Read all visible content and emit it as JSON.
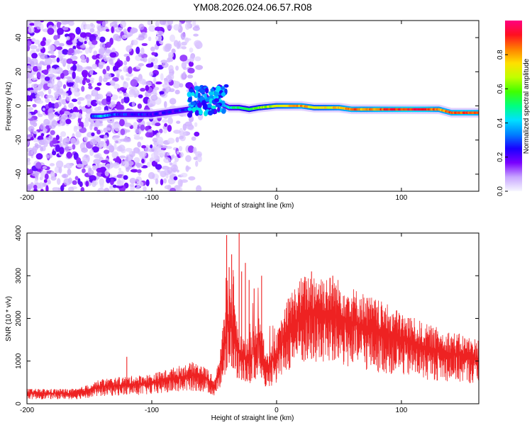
{
  "title": "YM08.2026.024.06.57.R08",
  "chart_data": [
    {
      "type": "heatmap",
      "title": "YM08.2026.024.06.57.R08",
      "xlabel": "Height of straight line (km)",
      "ylabel": "Frequency (Hz)",
      "xlim": [
        -200,
        162
      ],
      "ylim": [
        -50,
        50
      ],
      "x_ticks": [
        "-200",
        "-100",
        "0",
        "100"
      ],
      "y_ticks": [
        "-40",
        "-20",
        "0",
        "20",
        "40"
      ],
      "colorbar": {
        "label": "Normalized spectral amplitude",
        "range": [
          0,
          1
        ],
        "ticks": [
          "0.0",
          "0.2",
          "0.4",
          "0.6",
          "0.8"
        ],
        "colors": [
          "#f7f7ff",
          "#c8a6ff",
          "#7a00ff",
          "#1a00ff",
          "#0080ff",
          "#00e0ff",
          "#00ff80",
          "#40ff00",
          "#c0ff00",
          "#ffe000",
          "#ff8000",
          "#ff1020",
          "#ff0080"
        ]
      },
      "ridge": [
        {
          "x": -148,
          "f": -6,
          "a": 0.3
        },
        {
          "x": -140,
          "f": -6,
          "a": 0.4
        },
        {
          "x": -130,
          "f": -5,
          "a": 0.3
        },
        {
          "x": -120,
          "f": -5,
          "a": 0.25
        },
        {
          "x": -110,
          "f": -5,
          "a": 0.28
        },
        {
          "x": -100,
          "f": -5,
          "a": 0.22
        },
        {
          "x": -90,
          "f": -4,
          "a": 0.2
        },
        {
          "x": -80,
          "f": -3,
          "a": 0.25
        },
        {
          "x": -70,
          "f": -2,
          "a": 0.3
        },
        {
          "x": -62,
          "f": 2,
          "a": 0.3
        },
        {
          "x": -52,
          "f": 4,
          "a": 0.25
        },
        {
          "x": -44,
          "f": 1,
          "a": 0.4
        },
        {
          "x": -38,
          "f": -1,
          "a": 0.45
        },
        {
          "x": -30,
          "f": -1,
          "a": 0.5
        },
        {
          "x": -22,
          "f": -2,
          "a": 0.55
        },
        {
          "x": -14,
          "f": -1,
          "a": 0.6
        },
        {
          "x": 0,
          "f": 0,
          "a": 0.7
        },
        {
          "x": 10,
          "f": 0,
          "a": 0.75
        },
        {
          "x": 20,
          "f": 0,
          "a": 0.82
        },
        {
          "x": 30,
          "f": -1,
          "a": 0.7
        },
        {
          "x": 40,
          "f": -1,
          "a": 0.72
        },
        {
          "x": 50,
          "f": -1,
          "a": 0.78
        },
        {
          "x": 60,
          "f": -2,
          "a": 0.85
        },
        {
          "x": 70,
          "f": -2,
          "a": 0.8
        },
        {
          "x": 80,
          "f": -2,
          "a": 0.85
        },
        {
          "x": 90,
          "f": -2,
          "a": 0.88
        },
        {
          "x": 100,
          "f": -2,
          "a": 0.9
        },
        {
          "x": 110,
          "f": -2,
          "a": 0.92
        },
        {
          "x": 120,
          "f": -2,
          "a": 0.9
        },
        {
          "x": 130,
          "f": -2,
          "a": 0.8
        },
        {
          "x": 140,
          "f": -4,
          "a": 0.85
        },
        {
          "x": 150,
          "f": -4,
          "a": 0.88
        },
        {
          "x": 160,
          "f": -4,
          "a": 0.85
        }
      ]
    },
    {
      "type": "line",
      "xlabel": "Height of straight line (km)",
      "ylabel": "SNR (10 * v/v)",
      "xlim": [
        -200,
        162
      ],
      "ylim": [
        0,
        4000
      ],
      "x_ticks": [
        "-200",
        "-100",
        "0",
        "100"
      ],
      "y_ticks": [
        "0",
        "1000",
        "2000",
        "3000",
        "4000"
      ],
      "color": "#ee2222",
      "envelope": [
        {
          "x": -200,
          "y": 300
        },
        {
          "x": -160,
          "y": 300
        },
        {
          "x": -140,
          "y": 500
        },
        {
          "x": -120,
          "y": 550
        },
        {
          "x": -100,
          "y": 600
        },
        {
          "x": -80,
          "y": 750
        },
        {
          "x": -65,
          "y": 850
        },
        {
          "x": -55,
          "y": 700
        },
        {
          "x": -50,
          "y": 500
        },
        {
          "x": -46,
          "y": 900
        },
        {
          "x": -42,
          "y": 1800
        },
        {
          "x": -38,
          "y": 2400
        },
        {
          "x": -34,
          "y": 2000
        },
        {
          "x": -30,
          "y": 1500
        },
        {
          "x": -26,
          "y": 1300
        },
        {
          "x": -20,
          "y": 1400
        },
        {
          "x": -14,
          "y": 1800
        },
        {
          "x": -8,
          "y": 1000
        },
        {
          "x": 0,
          "y": 1400
        },
        {
          "x": 10,
          "y": 2200
        },
        {
          "x": 20,
          "y": 2550
        },
        {
          "x": 30,
          "y": 2650
        },
        {
          "x": 40,
          "y": 2600
        },
        {
          "x": 50,
          "y": 2500
        },
        {
          "x": 60,
          "y": 2350
        },
        {
          "x": 80,
          "y": 2100
        },
        {
          "x": 100,
          "y": 1850
        },
        {
          "x": 120,
          "y": 1600
        },
        {
          "x": 140,
          "y": 1450
        },
        {
          "x": 162,
          "y": 1300
        }
      ],
      "spikes": [
        {
          "x": -120,
          "y": 1100
        },
        {
          "x": -40,
          "y": 3950
        },
        {
          "x": -38,
          "y": 3200
        },
        {
          "x": -36,
          "y": 3500
        },
        {
          "x": -35,
          "y": 2800
        },
        {
          "x": -30,
          "y": 4000
        },
        {
          "x": -28,
          "y": 3100
        },
        {
          "x": -25,
          "y": 3300
        },
        {
          "x": -22,
          "y": 2900
        },
        {
          "x": -18,
          "y": 2700
        },
        {
          "x": -12,
          "y": 3000
        },
        {
          "x": 28,
          "y": 3100
        },
        {
          "x": 45,
          "y": 3000
        }
      ]
    }
  ]
}
